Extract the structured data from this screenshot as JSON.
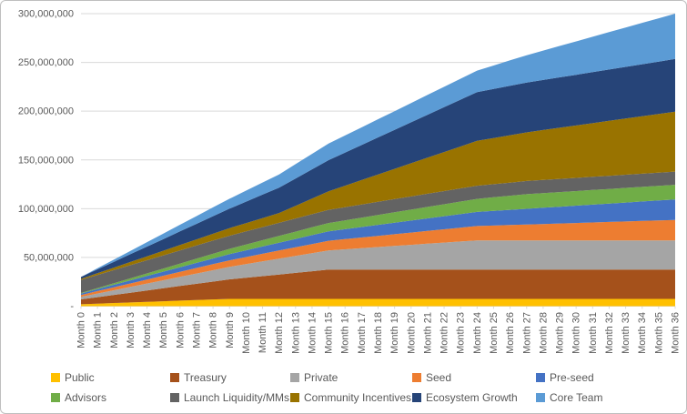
{
  "window": {
    "background": "#FFFFFF",
    "border_color": "#BFBFBF",
    "axis_text_color": "#595959",
    "gridline_color": "#D9D9D9"
  },
  "chart_data": {
    "type": "area",
    "stacked": true,
    "title": "",
    "xlabel": "",
    "ylabel": "",
    "grid": true,
    "legend_position": "bottom",
    "y_axis": {
      "min": 0,
      "max": 300000000,
      "tick_interval": 50000000,
      "tick_labels": [
        "-",
        "50,000,000",
        "100,000,000",
        "150,000,000",
        "200,000,000",
        "250,000,000",
        "300,000,000"
      ]
    },
    "x_categories": [
      "Month 0",
      "Month 1",
      "Month 2",
      "Month 3",
      "Month 4",
      "Month 5",
      "Month 6",
      "Month 7",
      "Month 8",
      "Month 9",
      "Month 10",
      "Month 11",
      "Month 12",
      "Month 13",
      "Month 14",
      "Month 15",
      "Month 16",
      "Month 17",
      "Month 18",
      "Month 19",
      "Month 20",
      "Month 21",
      "Month 22",
      "Month 23",
      "Month 24",
      "Month 25",
      "Month 26",
      "Month 27",
      "Month 28",
      "Month 29",
      "Month 30",
      "Month 31",
      "Month 32",
      "Month 33",
      "Month 34",
      "Month 35",
      "Month 36"
    ],
    "series": [
      {
        "name": "Public",
        "color": "#FFC000",
        "values": [
          2000000,
          2610000,
          3220000,
          3830000,
          4440000,
          5060000,
          5670000,
          6280000,
          6890000,
          7500000,
          7500000,
          7500000,
          7500000,
          7500000,
          7500000,
          7500000,
          7500000,
          7500000,
          7500000,
          7500000,
          7500000,
          7500000,
          7500000,
          7500000,
          7500000,
          7500000,
          7500000,
          7500000,
          7500000,
          7500000,
          7500000,
          7500000,
          7500000,
          7500000,
          7500000,
          7500000,
          7500000
        ]
      },
      {
        "name": "Treasury",
        "color": "#A5511B",
        "values": [
          5000000,
          6670000,
          8330000,
          10000000,
          11670000,
          13330000,
          15000000,
          16670000,
          18330000,
          20000000,
          21670000,
          23330000,
          25000000,
          26670000,
          28330000,
          30000000,
          30000000,
          30000000,
          30000000,
          30000000,
          30000000,
          30000000,
          30000000,
          30000000,
          30000000,
          30000000,
          30000000,
          30000000,
          30000000,
          30000000,
          30000000,
          30000000,
          30000000,
          30000000,
          30000000,
          30000000,
          30000000
        ]
      },
      {
        "name": "Private",
        "color": "#A5A5A5",
        "values": [
          2500000,
          3650000,
          4790000,
          5940000,
          7080000,
          8230000,
          9380000,
          10520000,
          11670000,
          12810000,
          13960000,
          15100000,
          16250000,
          17400000,
          18540000,
          19690000,
          20830000,
          21980000,
          23130000,
          24270000,
          25420000,
          26560000,
          27710000,
          28850000,
          30000000,
          30000000,
          30000000,
          30000000,
          30000000,
          30000000,
          30000000,
          30000000,
          30000000,
          30000000,
          30000000,
          30000000,
          30000000
        ]
      },
      {
        "name": "Seed",
        "color": "#ED7D31",
        "values": [
          2000000,
          2530000,
          3060000,
          3580000,
          4110000,
          4640000,
          5170000,
          5690000,
          6220000,
          6750000,
          7280000,
          7810000,
          8330000,
          8860000,
          9390000,
          9920000,
          10440000,
          10970000,
          11500000,
          12030000,
          12560000,
          13080000,
          13610000,
          14140000,
          14670000,
          15190000,
          15720000,
          16250000,
          16780000,
          17310000,
          17830000,
          18360000,
          18890000,
          19420000,
          19940000,
          20470000,
          21000000
        ]
      },
      {
        "name": "Pre-seed",
        "color": "#4472C4",
        "values": [
          1500000,
          2040000,
          2580000,
          3130000,
          3670000,
          4210000,
          4750000,
          5290000,
          5830000,
          6380000,
          6920000,
          7460000,
          8000000,
          8540000,
          9080000,
          9630000,
          10170000,
          10710000,
          11250000,
          11790000,
          12330000,
          12880000,
          13420000,
          13960000,
          14500000,
          15040000,
          15580000,
          16130000,
          16670000,
          17210000,
          17750000,
          18290000,
          18830000,
          19380000,
          19920000,
          20460000,
          21000000
        ]
      },
      {
        "name": "Advisors",
        "color": "#70AD47",
        "values": [
          500000,
          1040000,
          1570000,
          2110000,
          2650000,
          3190000,
          3720000,
          4260000,
          4800000,
          5330000,
          5870000,
          6410000,
          6940000,
          7480000,
          8020000,
          8560000,
          9090000,
          9630000,
          10170000,
          10700000,
          11240000,
          11780000,
          12310000,
          12850000,
          13390000,
          13930000,
          14460000,
          15000000,
          15000000,
          15000000,
          15000000,
          15000000,
          15000000,
          15000000,
          15000000,
          15000000,
          15000000
        ]
      },
      {
        "name": "Launch Liquidity/MMs",
        "color": "#636363",
        "values": [
          13500000,
          13500000,
          13500000,
          13500000,
          13500000,
          13500000,
          13500000,
          13500000,
          13500000,
          13500000,
          13500000,
          13500000,
          13500000,
          13500000,
          13500000,
          13500000,
          13500000,
          13500000,
          13500000,
          13500000,
          13500000,
          13500000,
          13500000,
          13500000,
          13500000,
          13500000,
          13500000,
          13500000,
          13500000,
          13500000,
          13500000,
          13500000,
          13500000,
          13500000,
          13500000,
          13500000,
          13500000
        ]
      },
      {
        "name": "Community Incentives",
        "color": "#997300",
        "values": [
          1000000,
          1750000,
          2500000,
          3250000,
          4000000,
          4750000,
          5500000,
          6250000,
          7000000,
          7750000,
          8500000,
          9250000,
          10000000,
          13000000,
          16000000,
          19000000,
          22000000,
          25000000,
          28000000,
          31000000,
          34000000,
          37000000,
          40000000,
          43000000,
          46000000,
          47290000,
          48580000,
          49880000,
          51170000,
          52460000,
          53750000,
          55040000,
          56330000,
          57630000,
          58920000,
          60210000,
          61500000
        ]
      },
      {
        "name": "Ecosystem Growth",
        "color": "#264478",
        "values": [
          2000000,
          4000000,
          6000000,
          8000000,
          10000000,
          12000000,
          14000000,
          16000000,
          18000000,
          20000000,
          22000000,
          24000000,
          26000000,
          28000000,
          30000000,
          32000000,
          34000000,
          36000000,
          38000000,
          40000000,
          42000000,
          44000000,
          46000000,
          48000000,
          50000000,
          50330000,
          50670000,
          51000000,
          51330000,
          51670000,
          52000000,
          52330000,
          52670000,
          53000000,
          53330000,
          53670000,
          54000000
        ]
      },
      {
        "name": "Core Team",
        "color": "#5B9BD5",
        "values": [
          0,
          1130000,
          2270000,
          3400000,
          4530000,
          5670000,
          6800000,
          7930000,
          9070000,
          10200000,
          11330000,
          12470000,
          13600000,
          14730000,
          15870000,
          17000000,
          17560000,
          18110000,
          18670000,
          19220000,
          19780000,
          20330000,
          20890000,
          21440000,
          22000000,
          24040000,
          26080000,
          28130000,
          30170000,
          32210000,
          34250000,
          36290000,
          38330000,
          40380000,
          42420000,
          44460000,
          46500000
        ]
      }
    ]
  }
}
